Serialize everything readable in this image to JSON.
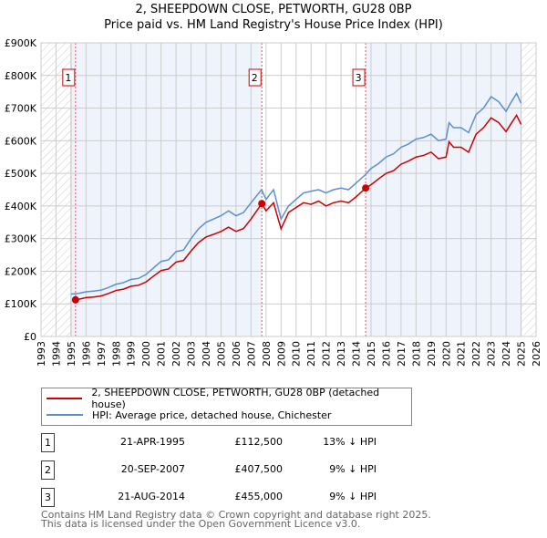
{
  "title": "2, SHEEPDOWN CLOSE, PETWORTH, GU28 0BP",
  "subtitle": "Price paid vs. HM Land Registry's House Price Index (HPI)",
  "colors": {
    "property": "#cc0000",
    "hpi": "#5b8fd1",
    "shade": "#eef3fc"
  },
  "chart_data": {
    "type": "line",
    "title": "2, SHEEPDOWN CLOSE, PETWORTH, GU28 0BP — Price paid vs. HM Land Registry's House Price Index (HPI)",
    "xlim": [
      1993,
      2026
    ],
    "ylim": [
      0,
      900000
    ],
    "x_ticks": [
      "1993",
      "1994",
      "1995",
      "1996",
      "1997",
      "1998",
      "1999",
      "2000",
      "2001",
      "2002",
      "2003",
      "2004",
      "2005",
      "2006",
      "2007",
      "2008",
      "2009",
      "2010",
      "2011",
      "2012",
      "2013",
      "2014",
      "2015",
      "2016",
      "2017",
      "2018",
      "2019",
      "2020",
      "2021",
      "2022",
      "2023",
      "2024",
      "2025",
      "2026"
    ],
    "y_ticks": [
      "£0",
      "£100K",
      "£200K",
      "£300K",
      "£400K",
      "£500K",
      "£600K",
      "£700K",
      "£800K",
      "£900K"
    ],
    "series": [
      {
        "name": "HPI: Average price, detached house, Chichester",
        "x": [
          1995,
          1995.5,
          1996,
          1996.5,
          1997,
          1997.5,
          1998,
          1998.5,
          1999,
          1999.5,
          2000,
          2000.5,
          2001,
          2001.5,
          2002,
          2002.5,
          2003,
          2003.5,
          2004,
          2004.5,
          2005,
          2005.5,
          2006,
          2006.5,
          2007,
          2007.7,
          2008,
          2008.5,
          2009,
          2009.5,
          2010,
          2010.5,
          2011,
          2011.5,
          2012,
          2012.5,
          2013,
          2013.5,
          2014,
          2014.6,
          2015,
          2015.5,
          2016,
          2016.5,
          2017,
          2017.5,
          2018,
          2018.5,
          2019,
          2019.5,
          2020,
          2020.2,
          2020.5,
          2021,
          2021.5,
          2022,
          2022.5,
          2023,
          2023.5,
          2024,
          2024.3,
          2024.7,
          2025
        ],
        "values": [
          130000,
          132000,
          137000,
          139000,
          142000,
          150000,
          160000,
          165000,
          175000,
          178000,
          190000,
          210000,
          230000,
          235000,
          260000,
          265000,
          300000,
          330000,
          350000,
          360000,
          370000,
          385000,
          370000,
          380000,
          410000,
          450000,
          420000,
          450000,
          360000,
          400000,
          420000,
          440000,
          445000,
          450000,
          440000,
          450000,
          455000,
          450000,
          470000,
          495000,
          515000,
          530000,
          550000,
          560000,
          580000,
          590000,
          605000,
          610000,
          620000,
          600000,
          605000,
          655000,
          640000,
          640000,
          625000,
          680000,
          700000,
          735000,
          720000,
          690000,
          715000,
          745000,
          715000
        ]
      },
      {
        "name": "2, SHEEPDOWN CLOSE, PETWORTH, GU28 0BP (detached house)",
        "x": [
          1995.3,
          1995.5,
          1996,
          1996.5,
          1997,
          1997.5,
          1998,
          1998.5,
          1999,
          1999.5,
          2000,
          2000.5,
          2001,
          2001.5,
          2002,
          2002.5,
          2003,
          2003.5,
          2004,
          2004.5,
          2005,
          2005.5,
          2006,
          2006.5,
          2007,
          2007.72,
          2008,
          2008.5,
          2009,
          2009.5,
          2010,
          2010.5,
          2011,
          2011.5,
          2012,
          2012.5,
          2013,
          2013.5,
          2014,
          2014.64,
          2015,
          2015.5,
          2016,
          2016.5,
          2017,
          2017.5,
          2018,
          2018.5,
          2019,
          2019.5,
          2020,
          2020.2,
          2020.5,
          2021,
          2021.5,
          2022,
          2022.5,
          2023,
          2023.5,
          2024,
          2024.3,
          2024.7,
          2025
        ],
        "values": [
          112500,
          114000,
          119000,
          121000,
          124000,
          132000,
          141000,
          145000,
          154000,
          157000,
          167000,
          185000,
          202000,
          207000,
          228000,
          233000,
          262000,
          288000,
          305000,
          313000,
          322000,
          335000,
          322000,
          331000,
          360000,
          407500,
          385000,
          410000,
          330000,
          380000,
          395000,
          410000,
          405000,
          415000,
          400000,
          410000,
          415000,
          410000,
          428000,
          455000,
          465000,
          483000,
          500000,
          508000,
          528000,
          538000,
          550000,
          555000,
          565000,
          545000,
          550000,
          597000,
          580000,
          580000,
          565000,
          620000,
          640000,
          670000,
          656000,
          628000,
          650000,
          678000,
          650000
        ]
      }
    ],
    "sales": [
      {
        "id": "1",
        "x": 1995.3,
        "value": 112500
      },
      {
        "id": "2",
        "x": 2007.72,
        "value": 407500
      },
      {
        "id": "3",
        "x": 2014.64,
        "value": 455000
      }
    ]
  },
  "legend": {
    "property": "2, SHEEPDOWN CLOSE, PETWORTH, GU28 0BP (detached house)",
    "hpi": "HPI: Average price, detached house, Chichester"
  },
  "transactions": [
    {
      "id": "1",
      "date": "21-APR-1995",
      "price": "£112,500",
      "hpi": "13% ↓ HPI"
    },
    {
      "id": "2",
      "date": "20-SEP-2007",
      "price": "£407,500",
      "hpi": "9% ↓ HPI"
    },
    {
      "id": "3",
      "date": "21-AUG-2014",
      "price": "£455,000",
      "hpi": "9% ↓ HPI"
    }
  ],
  "footer": {
    "line1": "Contains HM Land Registry data © Crown copyright and database right 2025.",
    "line2": "This data is licensed under the Open Government Licence v3.0."
  }
}
